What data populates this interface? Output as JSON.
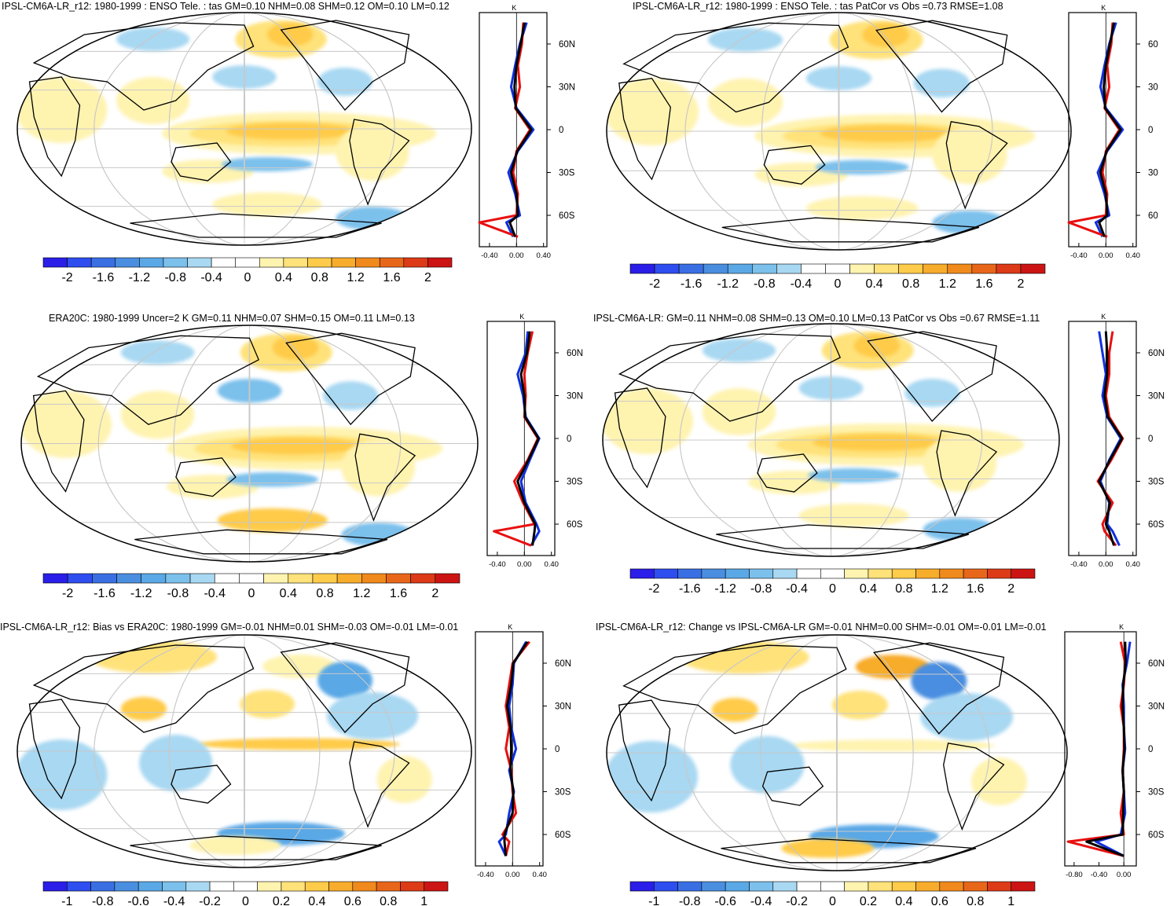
{
  "colors": {
    "scale": [
      "#2a1ee8",
      "#2e4ef0",
      "#3a6fe4",
      "#4a8ee0",
      "#5aa8e6",
      "#7cc0ec",
      "#a8d8f2",
      "#ffffff",
      "#ffffff",
      "#fff3b0",
      "#ffe27a",
      "#ffcb4a",
      "#f7ac2c",
      "#f08a1c",
      "#e8661a",
      "#dd3a18",
      "#cc1414"
    ],
    "model_line": "#1030e0",
    "obs_line": "#e81010",
    "mean_line": "#000000",
    "grid": "#c8c8c8",
    "coast": "#000000"
  },
  "panels": [
    {
      "title": "IPSL-CM6A-LR_r12: 1980-1999 : ENSO Tele. : tas GM=0.10 NHM=0.08 SHM=0.12 OM=0.10 LM=0.12",
      "colorbar_labels": [
        "-2",
        "-1.6",
        "-1.2",
        "-0.8",
        "-0.4",
        "0",
        "0.4",
        "0.8",
        "1.2",
        "1.6",
        "2"
      ],
      "zonal_x_ticks": [
        "-0.40",
        "0.00",
        "0.40"
      ],
      "zonal_y_ticks": [
        "60N",
        "30N",
        "0",
        "30S",
        "60S"
      ],
      "zonal_unit": "K"
    },
    {
      "title": "IPSL-CM6A-LR_r12: 1980-1999 : ENSO Tele. : tas PatCor vs Obs =0.73 RMSE=1.08",
      "colorbar_labels": [
        "-2",
        "-1.6",
        "-1.2",
        "-0.8",
        "-0.4",
        "0",
        "0.4",
        "0.8",
        "1.2",
        "1.6",
        "2"
      ],
      "zonal_x_ticks": [
        "-0.40",
        "0.00",
        "0.40"
      ],
      "zonal_y_ticks": [
        "60",
        "30",
        "0",
        "30",
        "60"
      ],
      "zonal_unit": "K"
    },
    {
      "title": "ERA20C: 1980-1999 Uncer=2 K GM=0.11 NHM=0.07 SHM=0.15 OM=0.11 LM=0.13",
      "colorbar_labels": [
        "-2",
        "-1.6",
        "-1.2",
        "-0.8",
        "-0.4",
        "0",
        "0.4",
        "0.8",
        "1.2",
        "1.6",
        "2"
      ],
      "zonal_x_ticks": [
        "-0.40",
        "0.00",
        "0.40"
      ],
      "zonal_y_ticks": [
        "60N",
        "30N",
        "0",
        "30S",
        "60S"
      ],
      "zonal_unit": "K"
    },
    {
      "title": "IPSL-CM6A-LR: GM=0.11 NHM=0.08 SHM=0.13 OM=0.10 LM=0.13 PatCor vs Obs =0.67 RMSE=1.11",
      "colorbar_labels": [
        "-2",
        "-1.6",
        "-1.2",
        "-0.8",
        "-0.4",
        "0",
        "0.4",
        "0.8",
        "1.2",
        "1.6",
        "2"
      ],
      "zonal_x_ticks": [
        "-0.40",
        "0.00",
        "0.40"
      ],
      "zonal_y_ticks": [
        "60N",
        "30N",
        "0",
        "30S",
        "60S"
      ],
      "zonal_unit": "K"
    },
    {
      "title": "IPSL-CM6A-LR_r12: Bias vs ERA20C: 1980-1999 GM=-0.01 NHM=0.01 SHM=-0.03 OM=-0.01 LM=-0.01",
      "colorbar_labels": [
        "-1",
        "-0.8",
        "-0.6",
        "-0.4",
        "-0.2",
        "0",
        "0.2",
        "0.4",
        "0.6",
        "0.8",
        "1"
      ],
      "zonal_x_ticks": [
        "-0.40",
        "0.00",
        "0.40"
      ],
      "zonal_y_ticks": [
        "60N",
        "30N",
        "0",
        "30S",
        "60S"
      ],
      "zonal_unit": "K"
    },
    {
      "title": "IPSL-CM6A-LR_r12: Change vs IPSL-CM6A-LR GM=-0.01 NHM=0.00 SHM=-0.01 OM=-0.01 LM=-0.01",
      "colorbar_labels": [
        "-1",
        "-0.8",
        "-0.6",
        "-0.4",
        "-0.2",
        "0",
        "0.2",
        "0.4",
        "0.6",
        "0.8",
        "1"
      ],
      "zonal_x_ticks": [
        "-0.80",
        "-0.40",
        "0.00"
      ],
      "zonal_y_ticks": [
        "60N",
        "30N",
        "0",
        "30S",
        "60S"
      ],
      "zonal_unit": "K"
    }
  ],
  "chart_data": [
    {
      "type": "heatmap",
      "title": "IPSL-CM6A-LR_r12: 1980-1999 : ENSO Tele. : tas GM=0.10 NHM=0.08 SHM=0.12 OM=0.10 LM=0.12",
      "colorbar": {
        "min": -2,
        "max": 2,
        "ticks": [
          -2,
          -1.6,
          -1.2,
          -0.8,
          -0.4,
          0,
          0.4,
          0.8,
          1.2,
          1.6,
          2
        ]
      },
      "zonal_mean": {
        "unit": "K",
        "xlim": [
          -0.55,
          0.45
        ],
        "lat": [
          75,
          60,
          45,
          30,
          15,
          0,
          -15,
          -30,
          -45,
          -60,
          -65,
          -75
        ],
        "series": [
          {
            "values": [
              0.15,
              0.05,
              -0.02,
              -0.08,
              0.0,
              0.25,
              0.02,
              -0.12,
              -0.02,
              0.05,
              -0.15,
              -0.05
            ]
          },
          {
            "values": [
              0.1,
              0.08,
              0.02,
              0.05,
              -0.02,
              0.2,
              0.0,
              -0.05,
              0.02,
              0.0,
              -0.55,
              0.02
            ]
          },
          {
            "values": [
              0.12,
              0.06,
              0.0,
              -0.03,
              -0.01,
              0.22,
              0.01,
              -0.08,
              0.0,
              0.02,
              -0.1,
              -0.02
            ]
          }
        ]
      }
    },
    {
      "type": "heatmap",
      "title": "IPSL-CM6A-LR_r12: 1980-1999 : ENSO Tele. : tas PatCor vs Obs =0.73 RMSE=1.08",
      "colorbar": {
        "min": -2,
        "max": 2,
        "ticks": [
          -2,
          -1.6,
          -1.2,
          -0.8,
          -0.4,
          0,
          0.4,
          0.8,
          1.2,
          1.6,
          2
        ]
      },
      "zonal_mean": {
        "unit": "K",
        "xlim": [
          -0.55,
          0.45
        ],
        "lat": [
          75,
          60,
          45,
          30,
          15,
          0,
          -15,
          -30,
          -45,
          -60,
          -65,
          -75
        ],
        "series": [
          {
            "values": [
              0.15,
              0.05,
              -0.02,
              -0.08,
              0.0,
              0.25,
              0.02,
              -0.12,
              -0.02,
              0.05,
              -0.15,
              -0.05
            ]
          },
          {
            "values": [
              0.1,
              0.08,
              0.02,
              0.05,
              -0.02,
              0.2,
              0.0,
              -0.05,
              0.02,
              0.0,
              -0.55,
              0.02
            ]
          },
          {
            "values": [
              0.12,
              0.06,
              0.0,
              -0.03,
              -0.01,
              0.22,
              0.01,
              -0.08,
              0.0,
              0.02,
              -0.1,
              -0.02
            ]
          }
        ]
      }
    },
    {
      "type": "heatmap",
      "title": "ERA20C: 1980-1999 Uncer=2 K GM=0.11 NHM=0.07 SHM=0.15 OM=0.11 LM=0.13",
      "colorbar": {
        "min": -2,
        "max": 2,
        "ticks": [
          -2,
          -1.6,
          -1.2,
          -0.8,
          -0.4,
          0,
          0.4,
          0.8,
          1.2,
          1.6,
          2
        ]
      },
      "zonal_mean": {
        "unit": "K",
        "xlim": [
          -0.55,
          0.45
        ],
        "lat": [
          75,
          60,
          45,
          30,
          15,
          0,
          -15,
          -30,
          -45,
          -60,
          -65,
          -75
        ],
        "series": [
          {
            "values": [
              0.05,
              0.02,
              -0.1,
              -0.02,
              0.02,
              0.22,
              0.08,
              -0.05,
              0.02,
              0.18,
              0.22,
              0.1
            ]
          },
          {
            "values": [
              0.12,
              0.05,
              0.0,
              0.02,
              0.0,
              0.2,
              0.05,
              -0.15,
              -0.02,
              0.15,
              -0.45,
              0.1
            ]
          },
          {
            "values": [
              0.08,
              0.04,
              -0.05,
              0.0,
              0.01,
              0.21,
              0.06,
              -0.1,
              0.0,
              0.16,
              0.15,
              0.12
            ]
          }
        ]
      }
    },
    {
      "type": "heatmap",
      "title": "IPSL-CM6A-LR: GM=0.11 NHM=0.08 SHM=0.13 OM=0.10 LM=0.13 PatCor vs Obs =0.67 RMSE=1.11",
      "colorbar": {
        "min": -2,
        "max": 2,
        "ticks": [
          -2,
          -1.6,
          -1.2,
          -0.8,
          -0.4,
          0,
          0.4,
          0.8,
          1.2,
          1.6,
          2
        ]
      },
      "zonal_mean": {
        "unit": "K",
        "xlim": [
          -0.55,
          0.45
        ],
        "lat": [
          75,
          60,
          45,
          30,
          15,
          0,
          -15,
          -30,
          -45,
          -60,
          -65,
          -75
        ],
        "series": [
          {
            "values": [
              -0.1,
              -0.05,
              0.0,
              -0.05,
              0.02,
              0.22,
              0.05,
              -0.08,
              0.05,
              0.02,
              0.1,
              0.2
            ]
          },
          {
            "values": [
              0.1,
              0.05,
              0.05,
              0.0,
              0.05,
              0.25,
              0.08,
              -0.12,
              0.1,
              -0.05,
              -0.02,
              0.15
            ]
          },
          {
            "values": [
              0.0,
              0.02,
              0.02,
              -0.02,
              0.03,
              0.24,
              0.06,
              -0.1,
              0.06,
              0.0,
              0.05,
              0.12
            ]
          }
        ]
      }
    },
    {
      "type": "heatmap",
      "title": "IPSL-CM6A-LR_r12: Bias vs ERA20C: 1980-1999 GM=-0.01 NHM=0.01 SHM=-0.03 OM=-0.01 LM=-0.01",
      "colorbar": {
        "min": -1,
        "max": 1,
        "ticks": [
          -1,
          -0.8,
          -0.6,
          -0.4,
          -0.2,
          0,
          0.2,
          0.4,
          0.6,
          0.8,
          1
        ]
      },
      "zonal_mean": {
        "unit": "K",
        "xlim": [
          -0.55,
          0.45
        ],
        "lat": [
          75,
          60,
          45,
          30,
          15,
          0,
          -15,
          -30,
          -45,
          -60,
          -65,
          -75
        ],
        "series": [
          {
            "values": [
              0.2,
              0.02,
              0.0,
              -0.05,
              -0.02,
              0.05,
              -0.05,
              0.02,
              -0.05,
              -0.1,
              -0.2,
              -0.1
            ]
          },
          {
            "values": [
              0.25,
              0.0,
              -0.05,
              -0.1,
              -0.05,
              -0.1,
              -0.02,
              0.0,
              0.05,
              -0.15,
              -0.05,
              -0.1
            ]
          },
          {
            "values": [
              0.22,
              0.01,
              -0.02,
              -0.08,
              -0.03,
              -0.02,
              -0.03,
              0.01,
              0.0,
              -0.12,
              -0.12,
              -0.1
            ]
          }
        ]
      }
    },
    {
      "type": "heatmap",
      "title": "IPSL-CM6A-LR_r12: Change vs IPSL-CM6A-LR GM=-0.01 NHM=0.00 SHM=-0.01 OM=-0.01 LM=-0.01",
      "colorbar": {
        "min": -1,
        "max": 1,
        "ticks": [
          -1,
          -0.8,
          -0.6,
          -0.4,
          -0.2,
          0,
          0.2,
          0.4,
          0.6,
          0.8,
          1
        ]
      },
      "zonal_mean": {
        "unit": "K",
        "xlim": [
          -0.95,
          0.2
        ],
        "lat": [
          75,
          60,
          45,
          30,
          15,
          0,
          -15,
          -30,
          -45,
          -60,
          -65,
          -75
        ],
        "series": [
          {
            "values": [
              0.1,
              0.05,
              -0.02,
              0.0,
              0.0,
              0.02,
              -0.02,
              0.0,
              0.02,
              -0.05,
              -0.45,
              0.0
            ]
          },
          {
            "values": [
              -0.05,
              0.02,
              0.0,
              -0.05,
              0.0,
              0.0,
              -0.02,
              0.0,
              -0.05,
              0.0,
              -0.9,
              0.0
            ]
          },
          {
            "values": [
              0.02,
              0.03,
              -0.01,
              -0.02,
              0.0,
              0.01,
              -0.02,
              0.0,
              -0.01,
              -0.02,
              -0.6,
              0.0
            ]
          }
        ]
      }
    }
  ]
}
